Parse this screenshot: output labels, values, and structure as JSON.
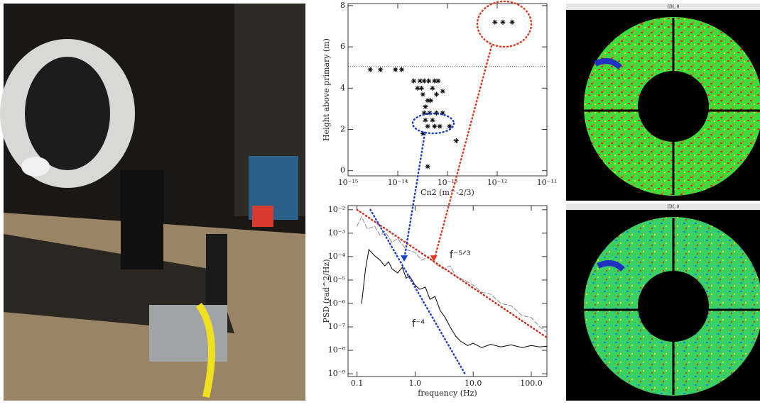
{
  "chart_data": [
    {
      "type": "scatter",
      "xlabel": "Cn2 (m^-2/3)",
      "ylabel": "Height above primary (m)",
      "xscale": "log",
      "xlim": [
        1e-15,
        1e-11
      ],
      "xticks": [
        {
          "value": 1e-15,
          "label": "10⁻¹⁵"
        },
        {
          "value": 1e-14,
          "label": "10⁻¹⁴"
        },
        {
          "value": 1e-13,
          "label": "10⁻¹³"
        },
        {
          "value": 1e-12,
          "label": "10⁻¹²"
        },
        {
          "value": 1e-11,
          "label": "10⁻¹¹"
        }
      ],
      "ylim": [
        -0.25,
        8.1
      ],
      "yticks": [
        0,
        2,
        4,
        6,
        8
      ],
      "hline": 5.05,
      "color": "#000000",
      "x": [
        2.8e-15,
        4.5e-15,
        9e-15,
        1.2e-14,
        2.1e-14,
        2.8e-14,
        3.4e-14,
        4.2e-14,
        5.5e-14,
        6.5e-14,
        2.5e-14,
        3e-14,
        5e-14,
        8e-14,
        3.2e-14,
        6e-14,
        4e-14,
        4.6e-14,
        3.6e-14,
        3.4e-14,
        4.4e-14,
        6e-14,
        8e-14,
        3.6e-14,
        5e-14,
        4e-14,
        5.5e-14,
        7e-14,
        1.1e-13,
        3.2e-14,
        1.5e-13,
        4e-14,
        9e-13,
        1.3e-12,
        2e-12
      ],
      "values": [
        4.9,
        4.9,
        4.9,
        4.9,
        4.35,
        4.35,
        4.35,
        4.35,
        4.35,
        4.35,
        4.0,
        4.0,
        4.0,
        3.85,
        3.7,
        3.7,
        3.4,
        3.4,
        3.1,
        2.8,
        2.8,
        2.8,
        2.8,
        2.45,
        2.45,
        2.15,
        2.15,
        2.15,
        2.15,
        1.8,
        1.45,
        0.2,
        7.2,
        7.2,
        7.2
      ]
    },
    {
      "type": "line",
      "xlabel": "frequency (Hz)",
      "ylabel": "PSD (rad^2/Hz)",
      "xscale": "log",
      "yscale": "log",
      "xlim": [
        0.07,
        186
      ],
      "ylim": [
        7.6e-10,
        0.015
      ],
      "xticks": [
        0.1,
        {
          "value": 1,
          "label": "1.0"
        },
        {
          "value": 10,
          "label": "10.0"
        },
        {
          "value": 100,
          "label": "100.0"
        }
      ],
      "yticks": [
        {
          "value": 0.01,
          "label": "10⁻²"
        },
        {
          "value": 0.001,
          "label": "10⁻³"
        },
        {
          "value": 0.0001,
          "label": "10⁻⁴"
        },
        {
          "value": 1e-05,
          "label": "10⁻⁵"
        },
        {
          "value": 1e-06,
          "label": "10⁻⁶"
        },
        {
          "value": 1e-07,
          "label": "10⁻⁷"
        },
        {
          "value": 1e-08,
          "label": "10⁻⁸"
        },
        {
          "value": 1e-09,
          "label": "10⁻⁹"
        }
      ],
      "series": [
        {
          "color": "#8a8a8a",
          "style": "dashed",
          "x": [
            0.1,
            0.12,
            0.15,
            0.2,
            0.25,
            0.3,
            0.4,
            0.5,
            0.7,
            1.0,
            1.3,
            1.7,
            2.2,
            3,
            4,
            5,
            7,
            10,
            14,
            20,
            30,
            45,
            70,
            100,
            140,
            186
          ],
          "values": [
            0.002,
            0.005,
            0.0015,
            0.002,
            0.0008,
            0.0012,
            0.0004,
            0.0006,
            0.0002,
            0.00015,
            7e-05,
            0.0001,
            5e-05,
            3e-05,
            4e-05,
            1.5e-05,
            1e-05,
            6e-06,
            3e-06,
            2.5e-06,
            1e-06,
            8e-07,
            3e-07,
            2.5e-07,
            1e-07,
            6e-08
          ]
        },
        {
          "color": "#000000",
          "style": "solid",
          "x": [
            0.12,
            0.14,
            0.16,
            0.2,
            0.25,
            0.3,
            0.35,
            0.4,
            0.5,
            0.6,
            0.7,
            0.8,
            1.0,
            1.2,
            1.5,
            1.8,
            2.2,
            2.7,
            3.3,
            4,
            5,
            6,
            8,
            10,
            14,
            20,
            30,
            45,
            70,
            100,
            140,
            186
          ],
          "values": [
            1e-06,
            3e-05,
            0.0002,
            0.00011,
            7e-05,
            4e-05,
            6e-05,
            3e-05,
            2e-05,
            3.5e-05,
            1.2e-05,
            1.5e-05,
            6e-06,
            4e-06,
            5e-06,
            1.5e-06,
            2e-06,
            5e-07,
            2.5e-07,
            1e-07,
            4e-08,
            2.5e-08,
            1.6e-08,
            2e-08,
            1.3e-08,
            1.8e-08,
            1.4e-08,
            1.7e-08,
            1.3e-08,
            1.6e-08,
            1.4e-08,
            1.5e-08
          ]
        },
        {
          "color": "#d03020",
          "style": "dotted",
          "x": [
            0.1,
            186
          ],
          "values": [
            0.01,
            3.5e-08
          ]
        },
        {
          "color": "#2040d0",
          "style": "dotted",
          "x": [
            0.17,
            7.2
          ],
          "values": [
            0.01,
            1e-09
          ]
        }
      ],
      "markers": [
        {
          "x": 0.65,
          "y": 8e-05,
          "color": "#1a3fd0"
        },
        {
          "x": 2.1,
          "y": 8e-05,
          "color": "#e03a20"
        }
      ],
      "annotations": [
        "f⁻⁵ᐟ³",
        "f⁻⁴"
      ]
    }
  ],
  "windows": [
    "IDL 0",
    "IDL 0"
  ]
}
